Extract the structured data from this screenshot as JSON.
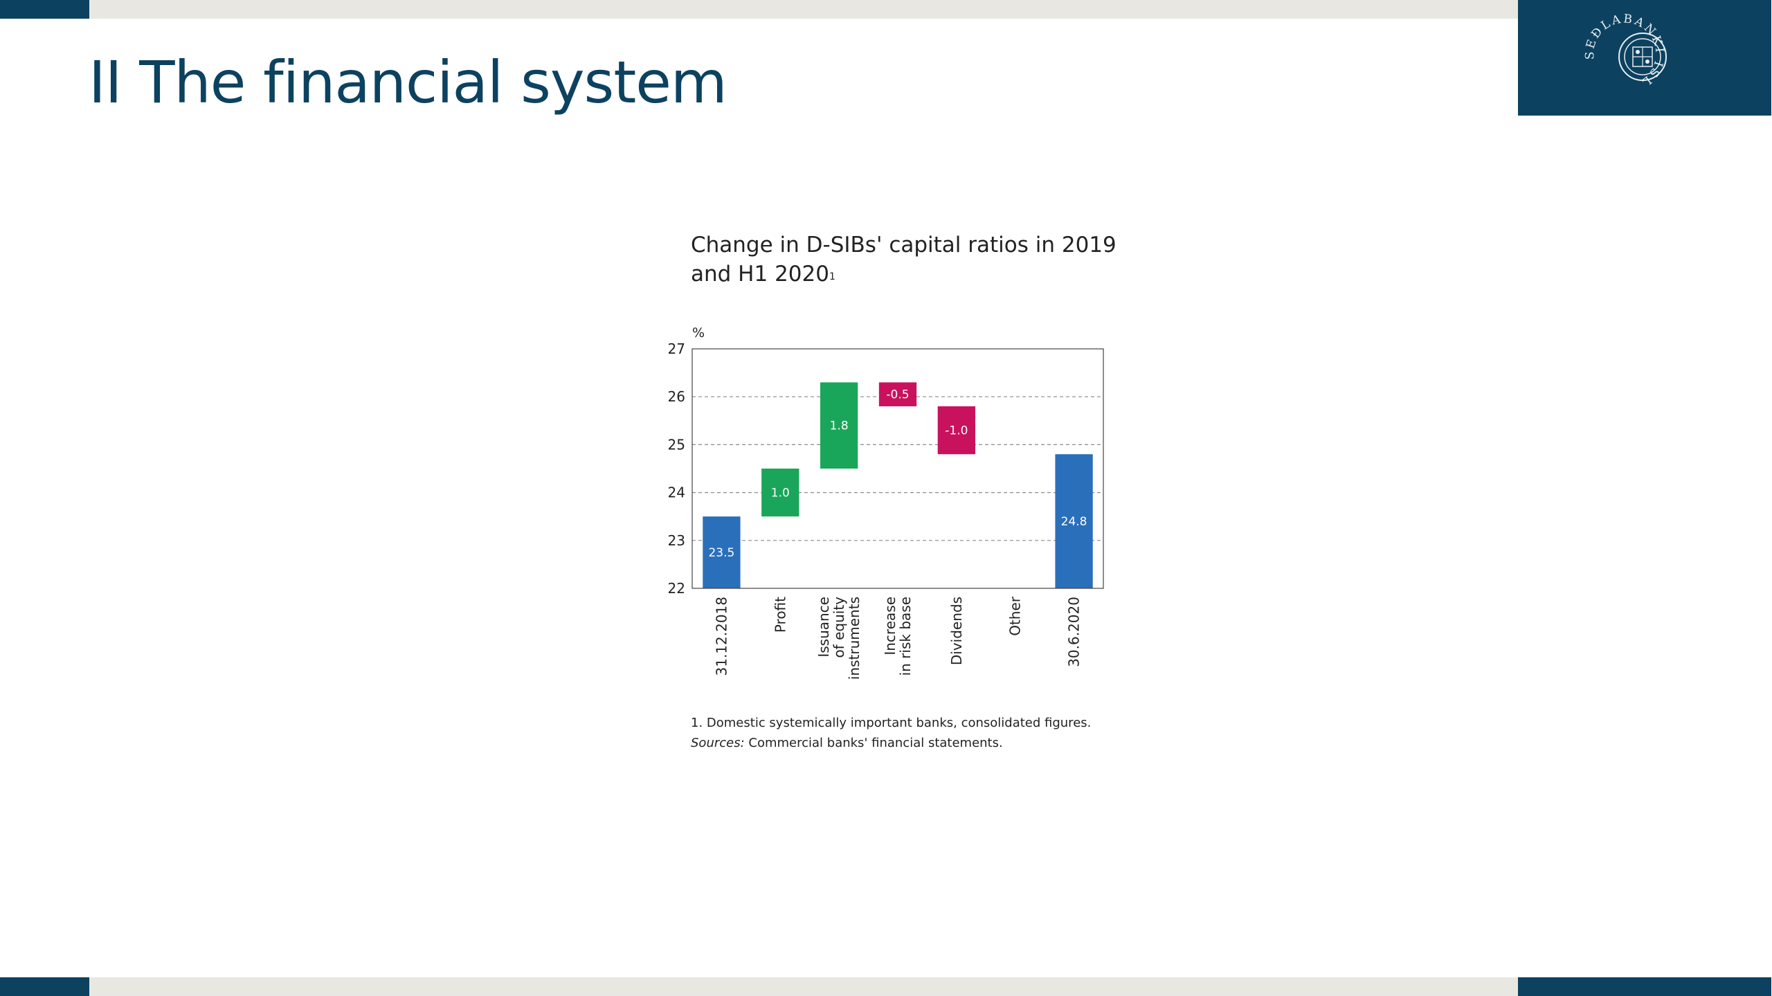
{
  "slide": {
    "title": "II The financial system",
    "logo_text": "SEÐLABANKI ÍSLANDS"
  },
  "colors": {
    "brand": "#0c4260",
    "increase": "#1aa65a",
    "decrease": "#c8125e",
    "total": "#2a6fba",
    "band": "#e9e7e2"
  },
  "chart_data": {
    "type": "waterfall",
    "title_line1": "Change in D-SIBs' capital ratios in 2019",
    "title_line2": "and H1 2020",
    "title_footnote_mark": "1",
    "ylabel": "%",
    "ylim": [
      22,
      27
    ],
    "yticks": [
      "22",
      "23",
      "24",
      "25",
      "26",
      "27"
    ],
    "grid": "dashed-horizontal",
    "bars": [
      {
        "category_lines": [
          "31.12.2018"
        ],
        "kind": "total",
        "start": 22,
        "end": 23.5,
        "label": "23.5"
      },
      {
        "category_lines": [
          "Profit"
        ],
        "kind": "increase",
        "start": 23.5,
        "end": 24.5,
        "label": "1.0"
      },
      {
        "category_lines": [
          "Issuance",
          "of equity",
          "instruments"
        ],
        "kind": "increase",
        "start": 24.5,
        "end": 26.3,
        "label": "1.8"
      },
      {
        "category_lines": [
          "Increase",
          "in risk base"
        ],
        "kind": "decrease",
        "start": 26.3,
        "end": 25.8,
        "label": "-0.5"
      },
      {
        "category_lines": [
          "Dividends"
        ],
        "kind": "decrease",
        "start": 25.8,
        "end": 24.8,
        "label": "-1.0"
      },
      {
        "category_lines": [
          "Other"
        ],
        "kind": "none",
        "start": 24.8,
        "end": 24.8,
        "label": ""
      },
      {
        "category_lines": [
          "30.6.2020"
        ],
        "kind": "total",
        "start": 22,
        "end": 24.8,
        "label": "24.8"
      }
    ]
  },
  "footnotes": {
    "note1": "1. Domestic systemically important banks, consolidated figures.",
    "sources_label": "Sources:",
    "sources_text": " Commercial banks' financial statements."
  }
}
